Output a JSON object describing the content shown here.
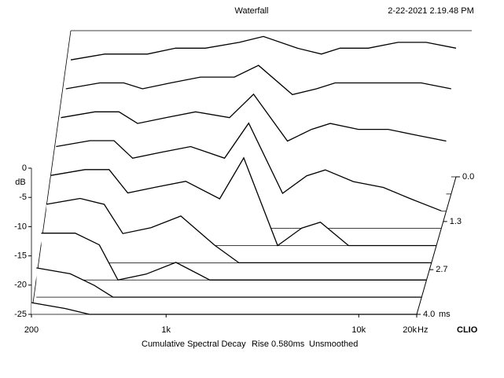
{
  "chart_data": {
    "type": "waterfall",
    "title": "Waterfall",
    "timestamp": "2-22-2021 2.19.48 PM",
    "y_label": "dB",
    "x_unit": "Hz",
    "z_unit": "ms",
    "brand": "CLIO",
    "footer": [
      "Cumulative Spectral Decay",
      "Rise 0.580ms",
      "Unsmoothed"
    ],
    "x_scale": "log",
    "color": "#000000",
    "xlim": [
      200,
      20000
    ],
    "xticks": [
      200,
      {
        "value": 1000,
        "label": "1k"
      },
      {
        "value": 10000,
        "label": "10k"
      },
      {
        "value": 20000,
        "label": "20k"
      }
    ],
    "ylim": [
      -25,
      0
    ],
    "yticks": [
      0,
      -5,
      -10,
      -15,
      -20,
      -25
    ],
    "zlim": [
      0,
      4.0
    ],
    "zticks": [
      {
        "value": 0,
        "label": "0.0"
      },
      1.3,
      2.7,
      {
        "value": 4.0,
        "label": "4.0"
      }
    ],
    "x": [
      200,
      300,
      400,
      500,
      700,
      1000,
      1500,
      2000,
      3000,
      4000,
      5000,
      7000,
      10000,
      14000,
      20000
    ],
    "slices": [
      {
        "time": 0,
        "values": [
          -5,
          -4,
          -4,
          -4,
          -3,
          -3,
          -2,
          -1,
          -3,
          -4,
          -3,
          -3,
          -2,
          -2,
          -3
        ]
      },
      {
        "time": 0.5,
        "values": [
          -7,
          -6,
          -6,
          -7,
          -6,
          -5,
          -5,
          -3,
          -8,
          -7,
          -6,
          -6,
          -6,
          -6,
          -7
        ]
      },
      {
        "time": 1.0,
        "values": [
          -9,
          -8,
          -8,
          -10,
          -9,
          -8,
          -9,
          -5,
          -13,
          -11,
          -10,
          -11,
          -11,
          -12,
          -13
        ]
      },
      {
        "time": 1.5,
        "values": [
          -11,
          -10,
          -10,
          -13,
          -12,
          -11,
          -13,
          -7,
          -19,
          -16,
          -15,
          -17,
          -18,
          -20,
          -22
        ]
      },
      {
        "time": 2.0,
        "values": [
          -13,
          -12,
          -12,
          -16,
          -15,
          -14,
          -17,
          -10,
          -25,
          -22,
          -21,
          -25,
          -25,
          -25,
          -25
        ]
      },
      {
        "time": 2.5,
        "values": [
          -15,
          -14,
          -15,
          -20,
          -19,
          -17,
          -22,
          -25,
          -25,
          -25,
          -25,
          -25,
          -25,
          -25,
          -25
        ]
      },
      {
        "time": 3.0,
        "values": [
          -17,
          -17,
          -19,
          -25,
          -24,
          -22,
          -25,
          -25,
          -25,
          -25,
          -25,
          -25,
          -25,
          -25,
          -25
        ]
      },
      {
        "time": 3.5,
        "values": [
          -20,
          -21,
          -23,
          -25,
          -25,
          -25,
          -25,
          -25,
          -25,
          -25,
          -25,
          -25,
          -25,
          -25,
          -25
        ]
      },
      {
        "time": 4.0,
        "values": [
          -23,
          -24,
          -25,
          -25,
          -25,
          -25,
          -25,
          -25,
          -25,
          -25,
          -25,
          -25,
          -25,
          -25,
          -25
        ]
      }
    ]
  }
}
